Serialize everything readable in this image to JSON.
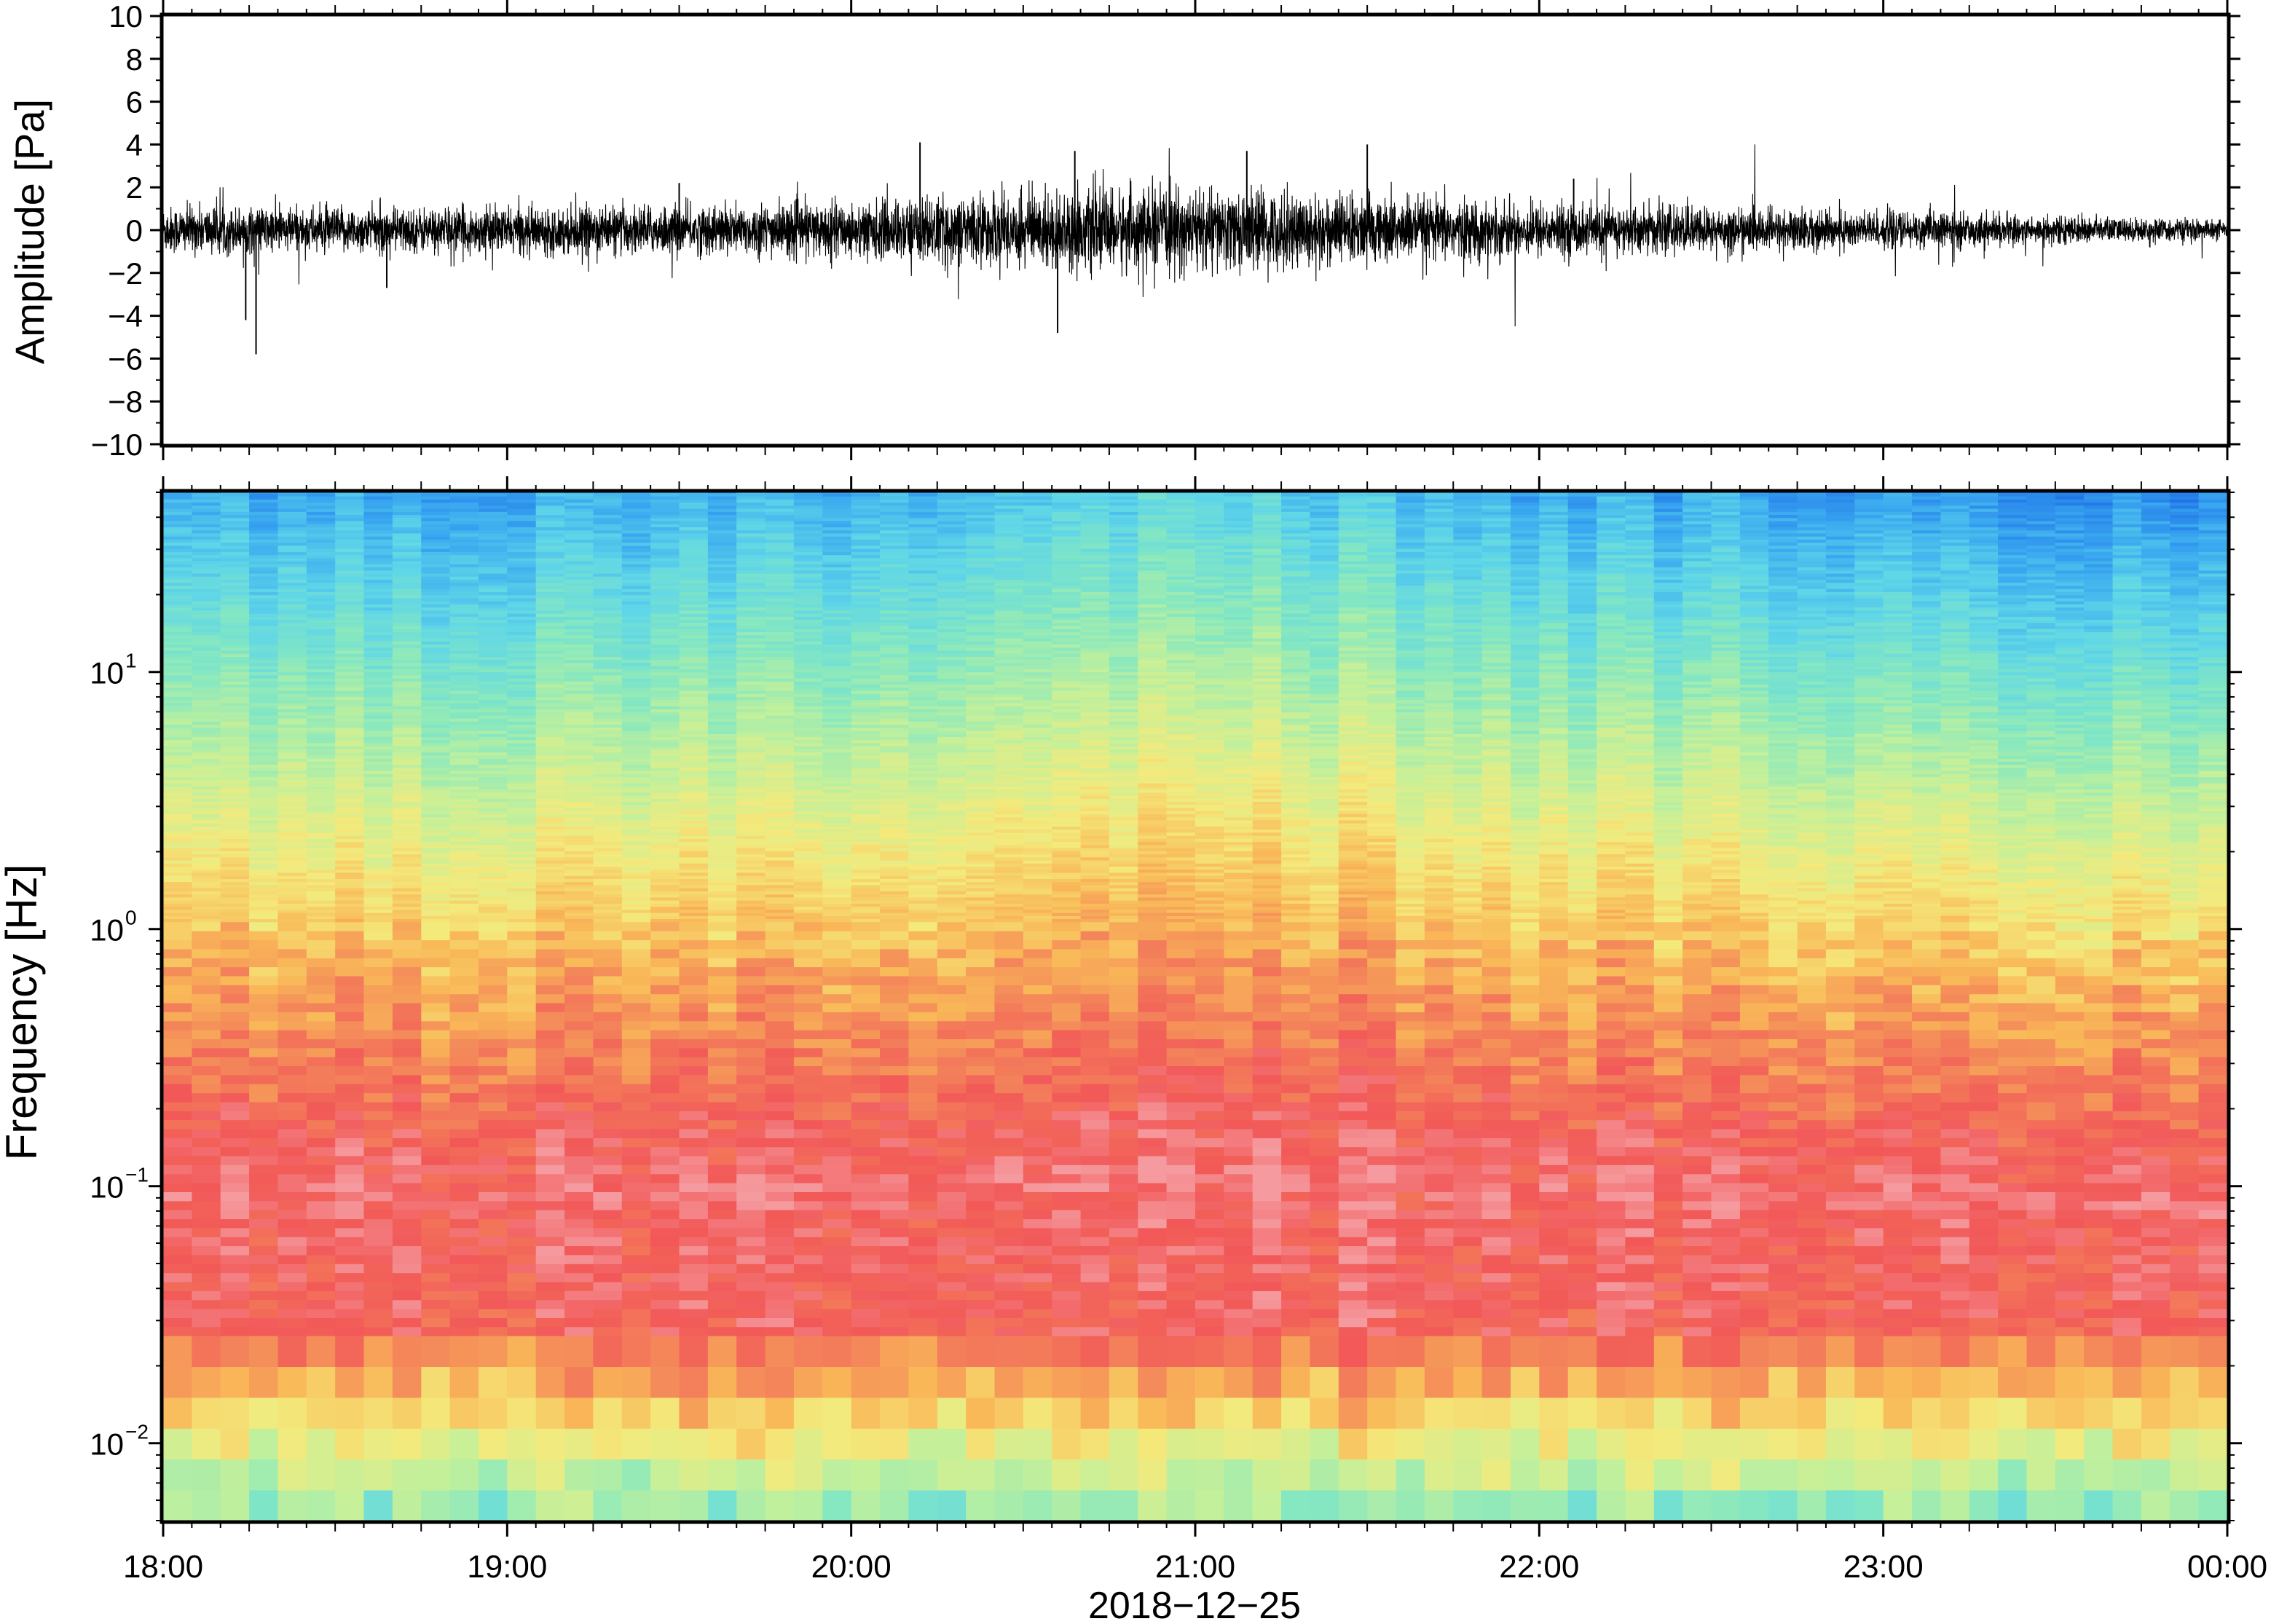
{
  "chart_data": [
    {
      "type": "line",
      "panel": "waveform",
      "ylabel": "Amplitude [Pa]",
      "ylim": [
        -10,
        10
      ],
      "yticks": [
        10,
        8,
        6,
        4,
        2,
        0,
        -2,
        -4,
        -6,
        -8,
        -10
      ],
      "ytick_labels": [
        "10",
        "8",
        "6",
        "4",
        "2",
        "0",
        "−2",
        "−4",
        "−6",
        "−8",
        "−10"
      ],
      "xlim": [
        "18:00",
        "00:00"
      ],
      "color": "#000000",
      "envelope": {
        "description_units": "hours after 18:00 vs typical peak amplitude in Pa",
        "t": [
          0,
          0.5,
          1,
          1.5,
          2,
          2.5,
          3,
          3.5,
          4,
          4.5,
          5,
          5.5,
          6
        ],
        "typical_peak": [
          1.4,
          1.3,
          1.3,
          1.4,
          1.6,
          2.2,
          2.4,
          2.0,
          1.5,
          1.3,
          1.1,
          0.8,
          0.6
        ]
      },
      "spikes": [
        {
          "t": 0.27,
          "y": -5.8
        },
        {
          "t": 0.24,
          "y": -4.2
        },
        {
          "t": 2.2,
          "y": 4.1
        },
        {
          "t": 2.6,
          "y": -4.8
        },
        {
          "t": 2.65,
          "y": 3.7
        },
        {
          "t": 3.15,
          "y": 3.7
        },
        {
          "t": 3.5,
          "y": 4.0
        },
        {
          "t": 0.65,
          "y": -2.7
        },
        {
          "t": 1.5,
          "y": 2.2
        },
        {
          "t": 4.1,
          "y": 2.4
        }
      ]
    },
    {
      "type": "heatmap",
      "panel": "spectrogram",
      "ylabel": "Frequency [Hz]",
      "yscale": "log",
      "ylim": [
        0.005,
        50
      ],
      "yticks": [
        0.01,
        0.1,
        1,
        10
      ],
      "ytick_labels": [
        {
          "base": "10",
          "exp": "−2"
        },
        {
          "base": "10",
          "exp": "−1"
        },
        {
          "base": "10",
          "exp": "0"
        },
        {
          "base": "10",
          "exp": "1"
        }
      ],
      "xlabel": "2018−12−25",
      "xticks": [
        "18:00",
        "19:00",
        "20:00",
        "21:00",
        "22:00",
        "23:00",
        "00:00"
      ],
      "colormap": [
        "#0b1fc4",
        "#1d6fe6",
        "#3aa8f0",
        "#5fd6e8",
        "#86e8c0",
        "#c4f09a",
        "#f4ea7c",
        "#f9b858",
        "#f3805a",
        "#f25858",
        "#f59a9e"
      ]
    }
  ]
}
